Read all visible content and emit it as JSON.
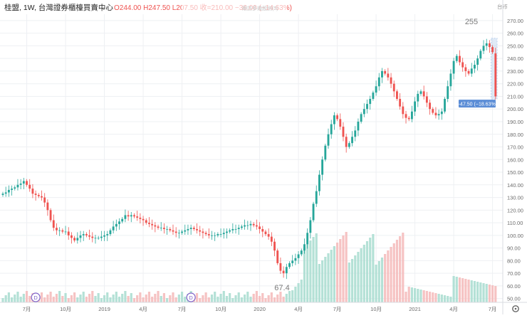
{
  "header": {
    "symbol": "桂盟, 1W, 台灣證券櫃檯買賣中心",
    "dropdown_icon": "chevron-down-icon",
    "ohlc": "O244.00  H247.50  L207.50  收=210.00  −36.00 (−14.63%)",
    "faded_label": "跟訪多幾股別(5)",
    "currency_label": "台币"
  },
  "colors": {
    "up": "#26a69a",
    "down": "#ef5350",
    "up_vol": "#a7dccf",
    "down_vol": "#f5b8b8",
    "grid": "#eef0f3",
    "axis_text": "#6b6b6b",
    "tag_bg": "#5b8dd6",
    "range_band": "#bcd4ee"
  },
  "annotations": {
    "high_label": "255",
    "low_label": "67.4",
    "current_price_tag": "210.00",
    "range_measure_label": "−47.50 (−18.63%)"
  },
  "chart_data": {
    "type": "candlestick",
    "interval": "1W",
    "ylim": [
      47,
      275
    ],
    "ticks": [
      "50.00",
      "60.00",
      "70.00",
      "80.00",
      "90.00",
      "100.00",
      "110.00",
      "120.00",
      "130.00",
      "140.00",
      "150.00",
      "160.00",
      "170.00",
      "180.00",
      "190.00",
      "200.00",
      "210.00",
      "220.00",
      "230.00",
      "240.00",
      "250.00",
      "260.00",
      "270.00"
    ],
    "x_labels": [
      {
        "label": "7月",
        "i": 8
      },
      {
        "label": "10月",
        "i": 21
      },
      {
        "label": "2019",
        "i": 34
      },
      {
        "label": "4月",
        "i": 47
      },
      {
        "label": "7月",
        "i": 60
      },
      {
        "label": "10月",
        "i": 73
      },
      {
        "label": "2020",
        "i": 86
      },
      {
        "label": "4月",
        "i": 99
      },
      {
        "label": "7月",
        "i": 112
      },
      {
        "label": "10月",
        "i": 125
      },
      {
        "label": "2021",
        "i": 138
      },
      {
        "label": "4月",
        "i": 151
      },
      {
        "label": "7月",
        "i": 164
      },
      {
        "label": "10",
        "i": 177
      }
    ],
    "dividend_markers": [
      {
        "label": "D",
        "i": 11
      },
      {
        "label": "D",
        "i": 63
      }
    ],
    "series_close": [
      133,
      134,
      136,
      137,
      138,
      140,
      141,
      143,
      140,
      137,
      133,
      132,
      131,
      130,
      126,
      120,
      112,
      106,
      104,
      104,
      103,
      103,
      100,
      98,
      96,
      98,
      100,
      101,
      100,
      99,
      98,
      98,
      98,
      99,
      100,
      101,
      104,
      107,
      109,
      111,
      113,
      116,
      115,
      116,
      115,
      114,
      113,
      112,
      110,
      109,
      108,
      107,
      106,
      106,
      105,
      105,
      104,
      103,
      102,
      102,
      103,
      104,
      105,
      106,
      105,
      104,
      103,
      102,
      101,
      100,
      100,
      100,
      101,
      101,
      102,
      103,
      104,
      105,
      105,
      106,
      107,
      108,
      108,
      109,
      108,
      107,
      105,
      103,
      101,
      99,
      95,
      88,
      78,
      72,
      70,
      75,
      78,
      80,
      82,
      85,
      88,
      93,
      102,
      112,
      125,
      135,
      148,
      160,
      171,
      180,
      188,
      195,
      192,
      186,
      178,
      170,
      173,
      178,
      183,
      190,
      196,
      200,
      204,
      208,
      213,
      218,
      225,
      230,
      228,
      225,
      220,
      214,
      208,
      202,
      196,
      193,
      192,
      198,
      206,
      212,
      214,
      210,
      205,
      200,
      197,
      195,
      196,
      198,
      208,
      218,
      228,
      238,
      242,
      237,
      233,
      230,
      228,
      232,
      235,
      240,
      246,
      250,
      252,
      249,
      245,
      210
    ],
    "series_open": [
      132,
      133,
      134,
      136,
      137,
      138,
      140,
      141,
      143,
      140,
      137,
      133,
      132,
      131,
      130,
      126,
      120,
      112,
      106,
      104,
      104,
      103,
      103,
      100,
      98,
      96,
      98,
      100,
      101,
      100,
      99,
      98,
      98,
      98,
      99,
      100,
      101,
      104,
      107,
      109,
      111,
      113,
      116,
      115,
      116,
      115,
      114,
      113,
      112,
      110,
      109,
      108,
      107,
      106,
      106,
      105,
      105,
      104,
      103,
      102,
      102,
      103,
      104,
      105,
      106,
      105,
      104,
      103,
      102,
      101,
      100,
      100,
      100,
      101,
      101,
      102,
      103,
      104,
      105,
      105,
      106,
      107,
      108,
      108,
      109,
      108,
      107,
      105,
      103,
      101,
      99,
      95,
      88,
      78,
      72,
      70,
      75,
      78,
      80,
      82,
      85,
      88,
      93,
      102,
      112,
      125,
      135,
      148,
      160,
      171,
      180,
      188,
      195,
      192,
      186,
      178,
      170,
      173,
      178,
      183,
      190,
      196,
      200,
      204,
      208,
      213,
      218,
      225,
      230,
      228,
      225,
      220,
      214,
      208,
      202,
      196,
      193,
      192,
      198,
      206,
      212,
      214,
      210,
      205,
      200,
      197,
      195,
      196,
      198,
      208,
      218,
      228,
      238,
      242,
      237,
      233,
      230,
      228,
      232,
      235,
      240,
      246,
      250,
      252,
      249,
      244
    ]
  }
}
